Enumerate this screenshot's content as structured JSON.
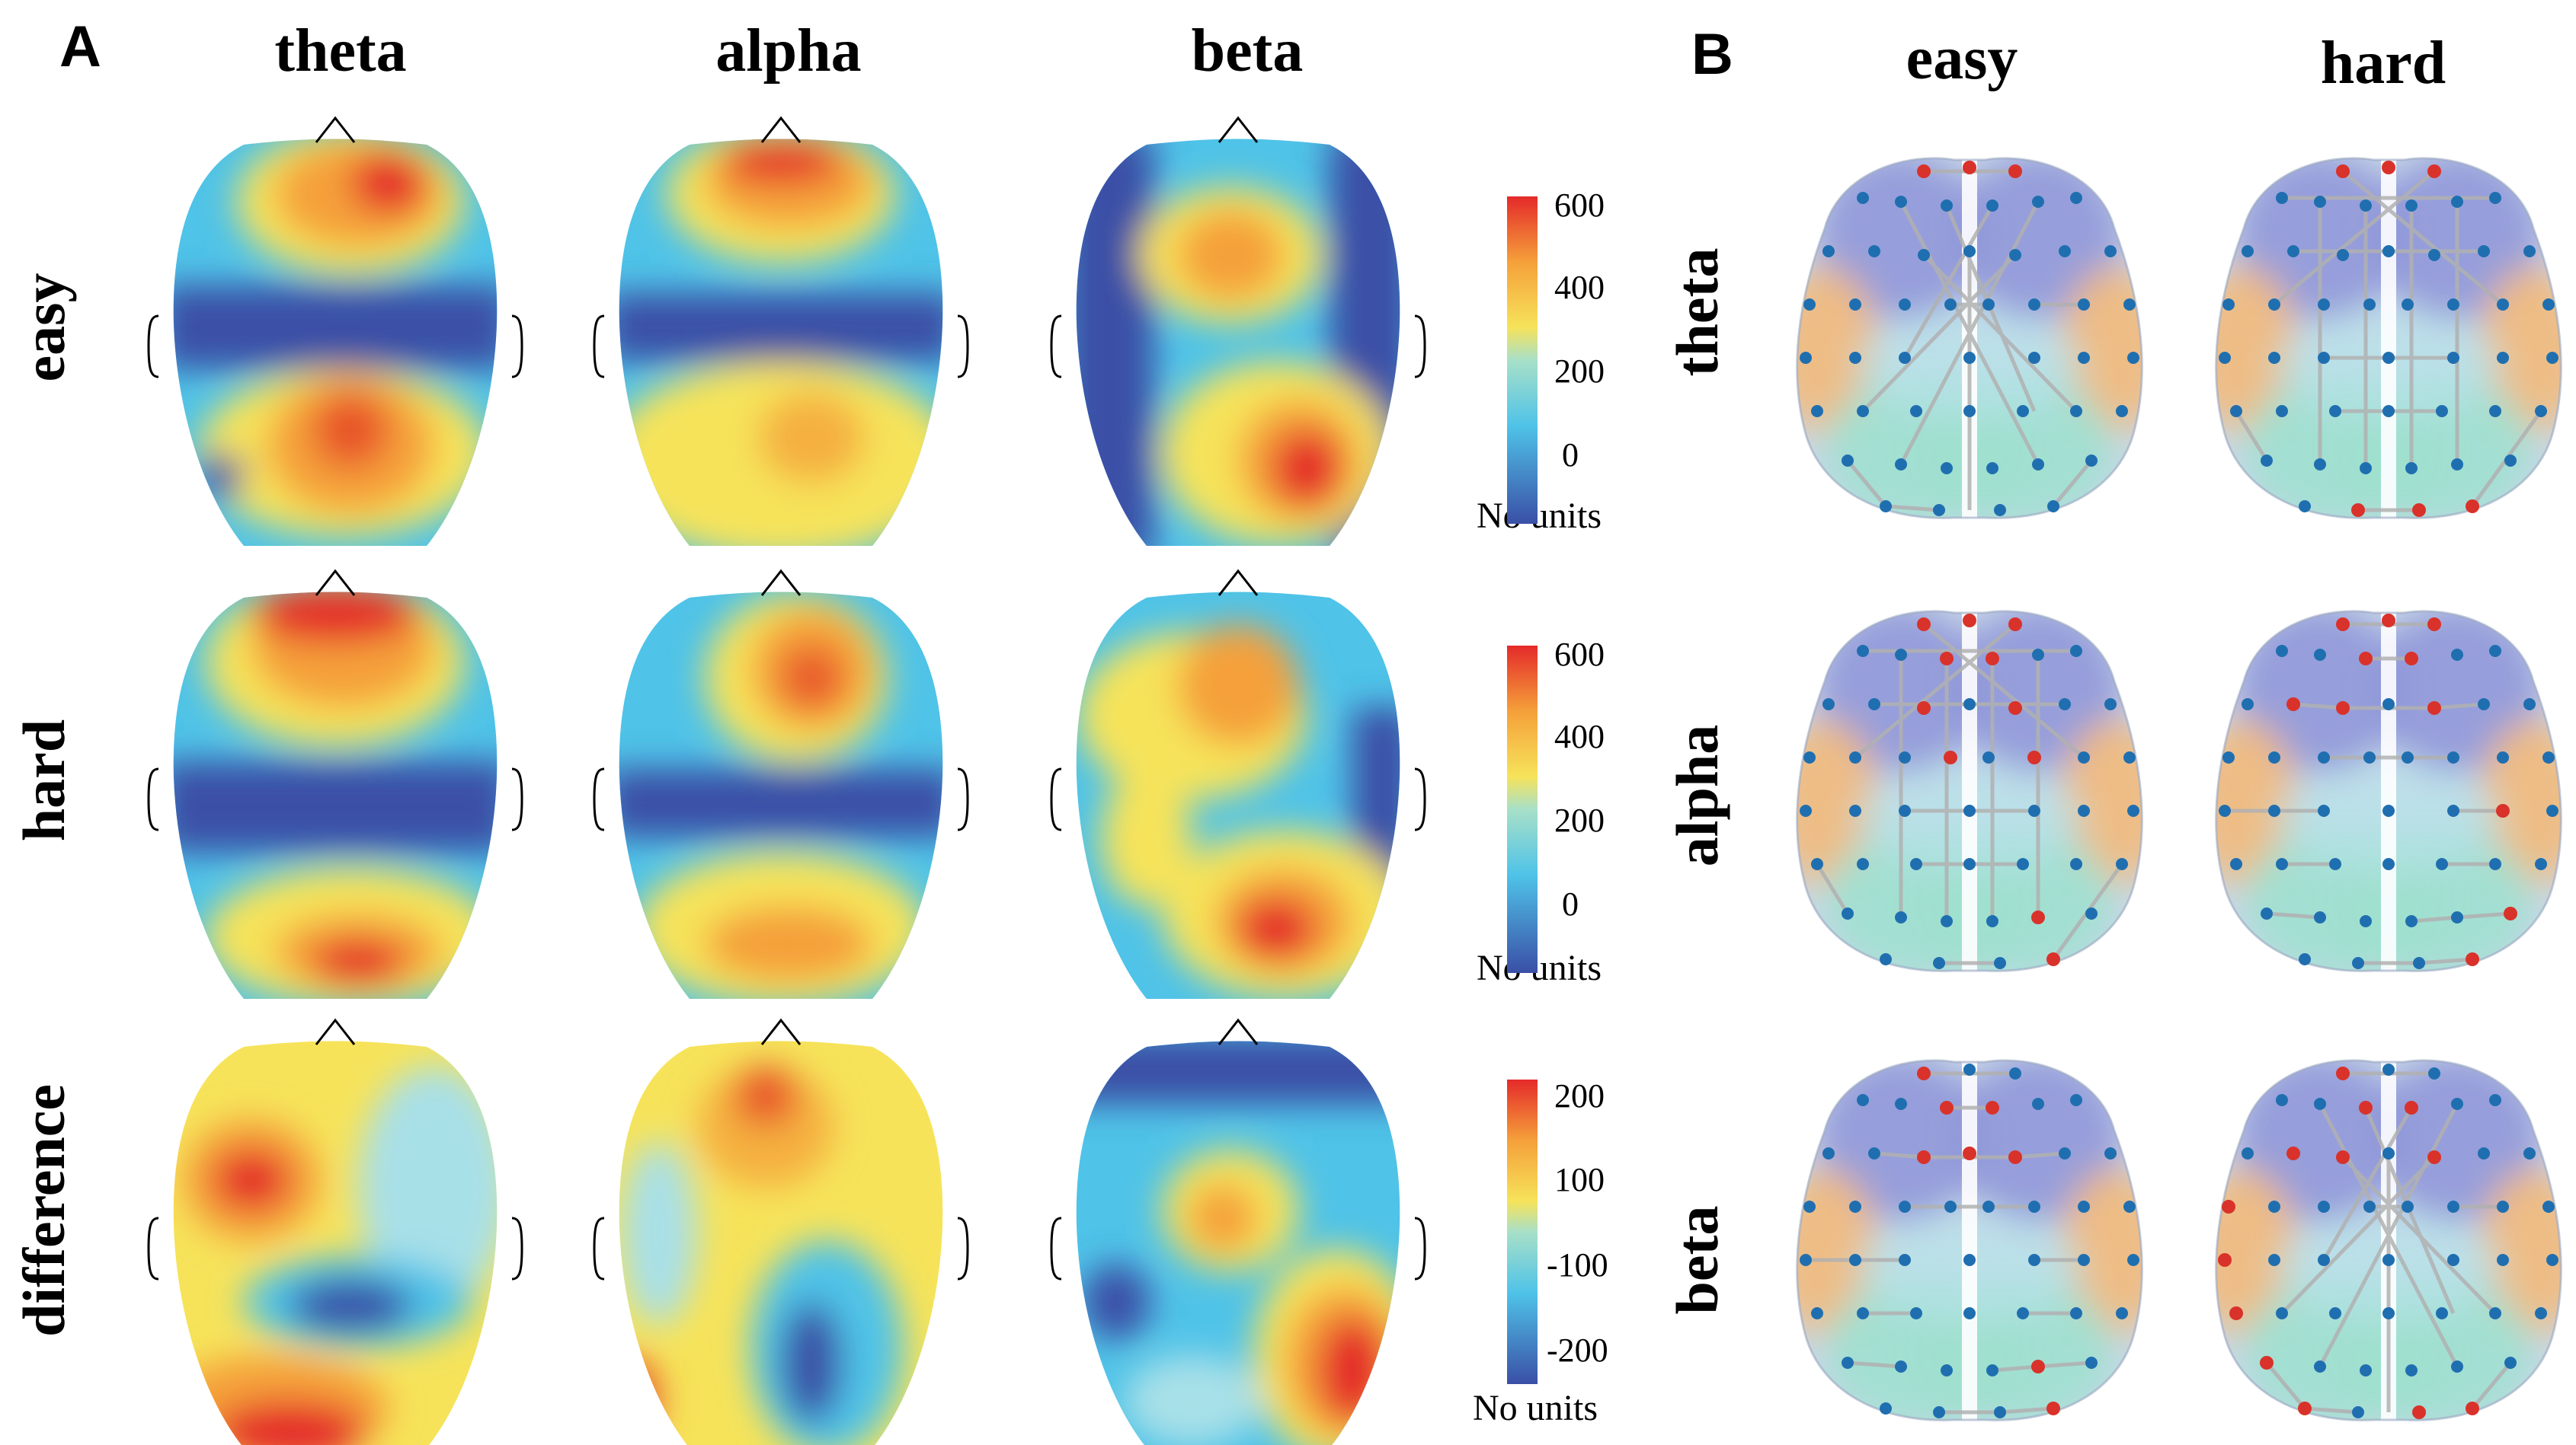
{
  "panels": {
    "a": "A",
    "b": "B"
  },
  "panel_a": {
    "columns": [
      "theta",
      "alpha",
      "beta"
    ],
    "rows": [
      "easy",
      "hard",
      "difference"
    ],
    "colorbars": [
      {
        "ticks": [
          "600",
          "400",
          "200",
          "0"
        ],
        "title": "No units"
      },
      {
        "ticks": [
          "600",
          "400",
          "200",
          "0"
        ],
        "title": "No units"
      },
      {
        "ticks": [
          "200",
          "100",
          "-100",
          "-200"
        ],
        "title": "No units"
      }
    ]
  },
  "panel_b": {
    "columns": [
      "easy",
      "hard"
    ],
    "rows": [
      "theta",
      "alpha",
      "beta"
    ]
  },
  "colors": {
    "low": "#3a4fa6",
    "midlow": "#4fc3e8",
    "mid": "#f6e35a",
    "midhigh": "#f5a03a",
    "high": "#e42a2a",
    "node_blue": "#1f6fb0",
    "node_red": "#d9322a",
    "edge": "#b8b8b8"
  }
}
